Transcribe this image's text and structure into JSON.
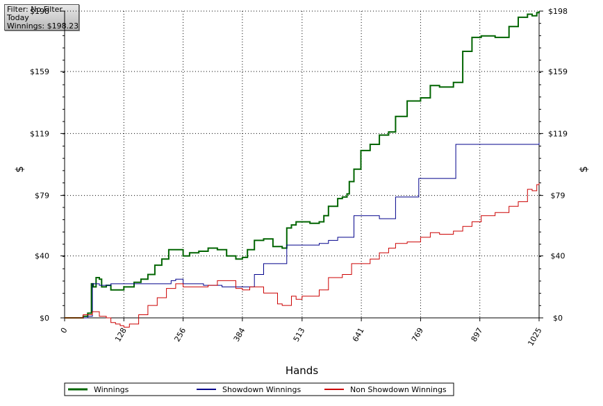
{
  "info_box": {
    "filter": "Filter: No Filter",
    "period": "Today",
    "winnings": "Winnings: $198.23"
  },
  "chart_data": {
    "type": "line",
    "xlabel": "Hands",
    "ylabel": "$",
    "xlim": [
      0,
      1025
    ],
    "ylim": [
      0,
      198
    ],
    "x_ticks": [
      0,
      128,
      256,
      384,
      513,
      641,
      769,
      897,
      1025
    ],
    "y_ticks": [
      0,
      40,
      79,
      119,
      159,
      198
    ],
    "y_tick_labels": [
      "$0",
      "$40",
      "$79",
      "$119",
      "$159",
      "$198"
    ],
    "grid": true,
    "legend_position": "bottom",
    "colors": {
      "winnings": "#006400",
      "showdown": "#00008b",
      "non_showdown": "#cc0000"
    },
    "series": [
      {
        "name": "Winnings",
        "x": [
          0,
          20,
          40,
          50,
          55,
          58,
          62,
          68,
          75,
          80,
          90,
          100,
          110,
          128,
          150,
          165,
          180,
          195,
          210,
          225,
          240,
          256,
          270,
          290,
          310,
          330,
          350,
          370,
          380,
          384,
          395,
          410,
          430,
          450,
          470,
          480,
          490,
          500,
          513,
          530,
          550,
          560,
          570,
          590,
          600,
          610,
          615,
          625,
          640,
          660,
          680,
          700,
          715,
          740,
          769,
          790,
          810,
          840,
          860,
          880,
          900,
          930,
          960,
          980,
          1000,
          1010,
          1020,
          1025
        ],
        "y": [
          0,
          0,
          1,
          3,
          3,
          22,
          20,
          26,
          25,
          20,
          21,
          18,
          18,
          20,
          23,
          25,
          28,
          34,
          38,
          44,
          44,
          40,
          42,
          43,
          45,
          44,
          40,
          38,
          38,
          39,
          44,
          50,
          51,
          46,
          45,
          58,
          60,
          62,
          62,
          61,
          62,
          66,
          72,
          77,
          78,
          80,
          88,
          96,
          108,
          112,
          118,
          120,
          130,
          140,
          142,
          150,
          149,
          152,
          172,
          181,
          182,
          181,
          188,
          194,
          196,
          195,
          197,
          198
        ]
      },
      {
        "name": "Showdown Winnings",
        "x": [
          0,
          40,
          50,
          60,
          75,
          100,
          128,
          210,
          230,
          240,
          256,
          300,
          340,
          384,
          410,
          430,
          470,
          480,
          500,
          550,
          570,
          590,
          610,
          625,
          665,
          680,
          710,
          715,
          760,
          765,
          840,
          845,
          900,
          1000,
          1025
        ],
        "y": [
          0,
          0,
          1,
          22,
          21,
          22,
          22,
          22,
          24,
          25,
          22,
          21,
          20,
          20,
          28,
          35,
          35,
          47,
          47,
          48,
          50,
          52,
          52,
          66,
          66,
          64,
          64,
          78,
          78,
          90,
          90,
          112,
          112,
          112,
          113
        ]
      },
      {
        "name": "Non Showdown Winnings",
        "x": [
          0,
          20,
          40,
          60,
          75,
          90,
          100,
          110,
          120,
          128,
          140,
          160,
          180,
          200,
          220,
          240,
          256,
          290,
          310,
          330,
          350,
          370,
          384,
          400,
          430,
          460,
          470,
          490,
          500,
          513,
          530,
          550,
          570,
          590,
          600,
          620,
          640,
          660,
          680,
          700,
          715,
          740,
          769,
          790,
          810,
          840,
          860,
          880,
          900,
          930,
          960,
          980,
          1000,
          1010,
          1020,
          1025
        ],
        "y": [
          0,
          0,
          2,
          4,
          1,
          0,
          -3,
          -4,
          -5,
          -6,
          -4,
          2,
          8,
          13,
          19,
          22,
          20,
          20,
          21,
          24,
          24,
          19,
          18,
          20,
          16,
          9,
          8,
          14,
          12,
          14,
          14,
          18,
          26,
          26,
          28,
          35,
          35,
          38,
          42,
          45,
          48,
          49,
          52,
          55,
          54,
          56,
          59,
          62,
          66,
          68,
          72,
          75,
          83,
          82,
          86,
          87
        ]
      }
    ]
  }
}
